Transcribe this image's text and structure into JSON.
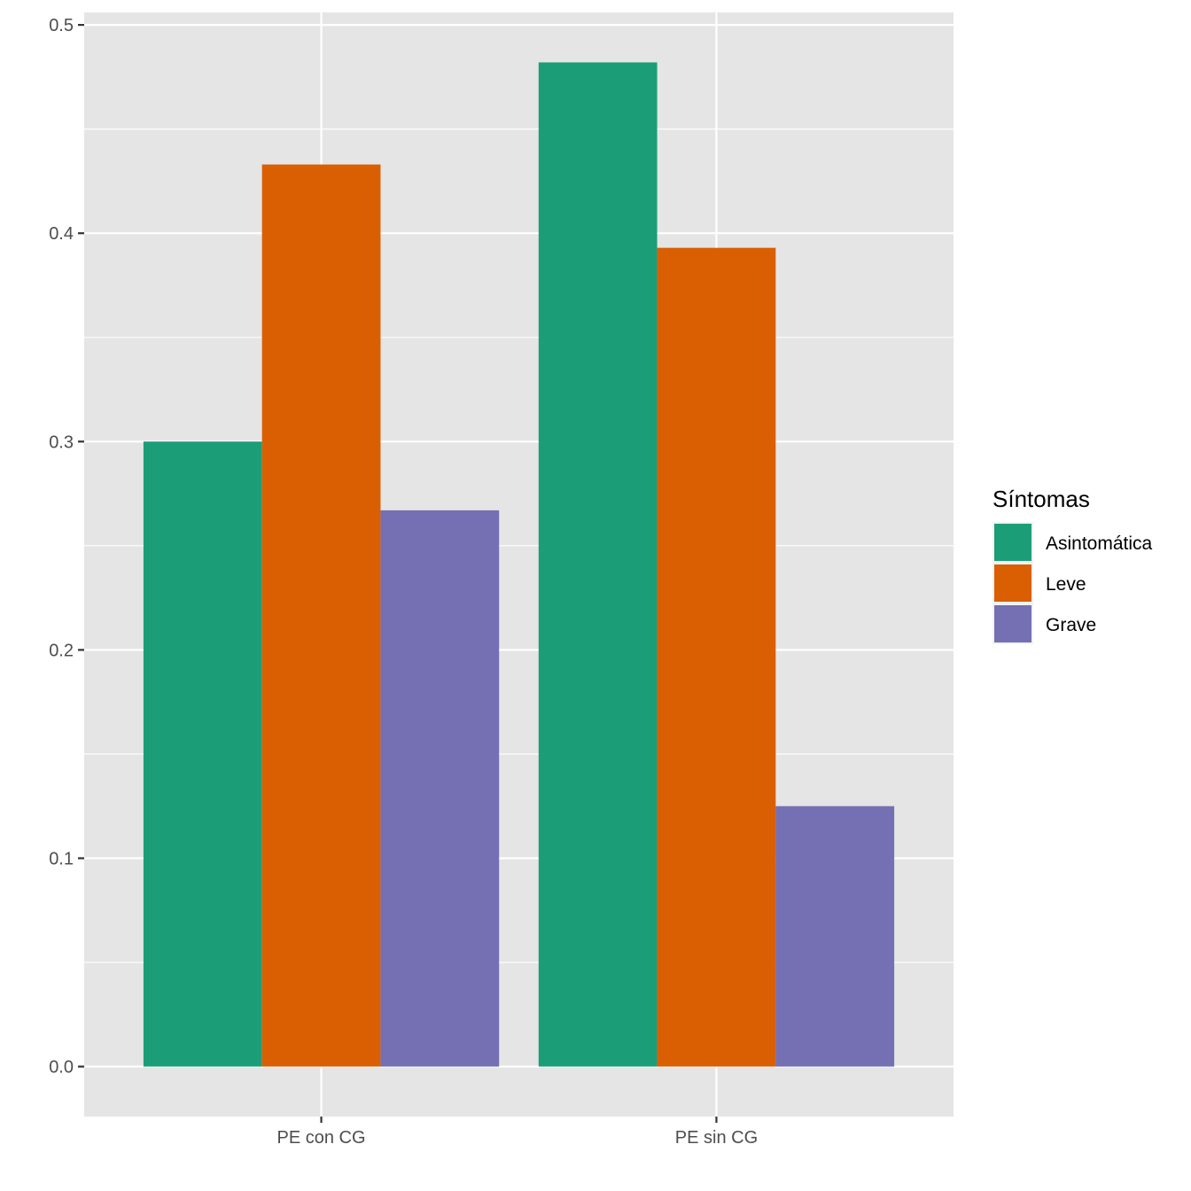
{
  "chart_data": {
    "type": "bar",
    "categories": [
      "PE con CG",
      "PE sin CG"
    ],
    "series": [
      {
        "name": "Asintomática",
        "color": "#1B9E77",
        "values": [
          0.3,
          0.482
        ]
      },
      {
        "name": "Leve",
        "color": "#D95F02",
        "values": [
          0.433,
          0.393
        ]
      },
      {
        "name": "Grave",
        "color": "#7570B3",
        "values": [
          0.267,
          0.125
        ]
      }
    ],
    "title": "",
    "xlabel": "",
    "ylabel": "",
    "ylim": [
      -0.024,
      0.506
    ],
    "yticks": [
      0.0,
      0.1,
      0.2,
      0.3,
      0.4,
      0.5
    ],
    "ytick_labels": [
      "0.0",
      "0.1",
      "0.2",
      "0.3",
      "0.4",
      "0.5"
    ],
    "grid": true,
    "legend": {
      "title": "Síntomas",
      "position": "right"
    },
    "colors": {
      "panel": "#E5E5E5",
      "grid": "#FFFFFF",
      "text": "#4D4D4D"
    }
  }
}
